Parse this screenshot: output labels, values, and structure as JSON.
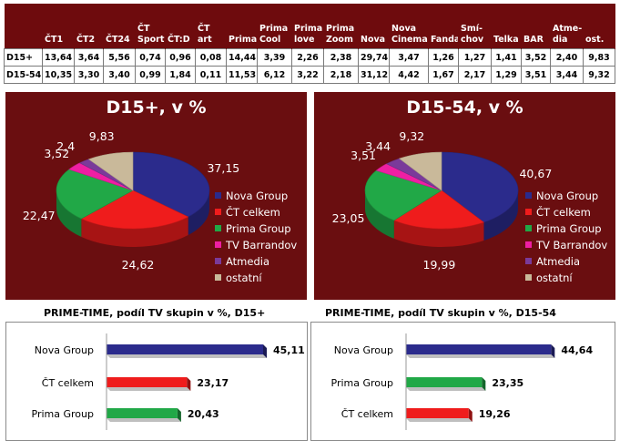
{
  "colors": {
    "panel_bg": "#6a0e10",
    "nova": "#2b2b8c",
    "ct": "#ef1c1c",
    "prima": "#21a847",
    "barrandov": "#ee1fa3",
    "atmedia": "#7a3a9a",
    "ostatni": "#c9b99a"
  },
  "table": {
    "columns": [
      "",
      "ČT1",
      "ČT2",
      "ČT24",
      "ČT\nSport",
      "ČT:D",
      "ČT art",
      "Prima",
      "Prima\nCool",
      "Prima\nlove",
      "Prima\nZoom",
      "Nova",
      "Nova\nCinema",
      "Fanda",
      "Smí-\nchov",
      "Telka",
      "BAR",
      "Atme-\ndia",
      "ost."
    ],
    "rows": [
      {
        "label": "D15+",
        "values": [
          "13,64",
          "3,64",
          "5,56",
          "0,74",
          "0,96",
          "0,08",
          "14,44",
          "3,39",
          "2,26",
          "2,38",
          "29,74",
          "3,47",
          "1,26",
          "1,27",
          "1,41",
          "3,52",
          "2,40",
          "9,83"
        ]
      },
      {
        "label": "D15-54",
        "values": [
          "10,35",
          "3,30",
          "3,40",
          "0,99",
          "1,84",
          "0,11",
          "11,53",
          "6,12",
          "3,22",
          "2,18",
          "31,12",
          "4,42",
          "1,67",
          "2,17",
          "1,29",
          "3,51",
          "3,44",
          "9,32"
        ]
      }
    ]
  },
  "chart_data": [
    {
      "type": "pie",
      "title": "D15+, v %",
      "categories": [
        "Nova Group",
        "ČT celkem",
        "Prima Group",
        "TV Barrandov",
        "Atmedia",
        "ostatní"
      ],
      "values": [
        37.15,
        24.62,
        22.47,
        3.52,
        2.4,
        9.83
      ],
      "data_labels": [
        "37,15",
        "24,62",
        "22,47",
        "3,52",
        "2,4",
        "9,83"
      ],
      "legend": "right"
    },
    {
      "type": "pie",
      "title": "D15-54, v %",
      "categories": [
        "Nova Group",
        "ČT celkem",
        "Prima Group",
        "TV Barrandov",
        "Atmedia",
        "ostatní"
      ],
      "values": [
        40.67,
        19.99,
        23.05,
        3.51,
        3.44,
        9.32
      ],
      "data_labels": [
        "40,67",
        "19,99",
        "23,05",
        "3,51",
        "3,44",
        "9,32"
      ],
      "legend": "right"
    },
    {
      "type": "bar",
      "title": "PRIME-TIME, podíl TV skupin v %, D15+",
      "categories": [
        "Nova Group",
        "ČT celkem",
        "Prima Group"
      ],
      "values": [
        45.11,
        23.17,
        20.43
      ],
      "data_labels": [
        "45,11",
        "23,17",
        "20,43"
      ],
      "orientation": "horizontal"
    },
    {
      "type": "bar",
      "title": "PRIME-TIME, podíl TV skupin v %, D15-54",
      "categories": [
        "Nova Group",
        "Prima Group",
        "ČT celkem"
      ],
      "values": [
        44.64,
        23.35,
        19.26
      ],
      "data_labels": [
        "44,64",
        "23,35",
        "19,26"
      ],
      "orientation": "horizontal"
    }
  ]
}
